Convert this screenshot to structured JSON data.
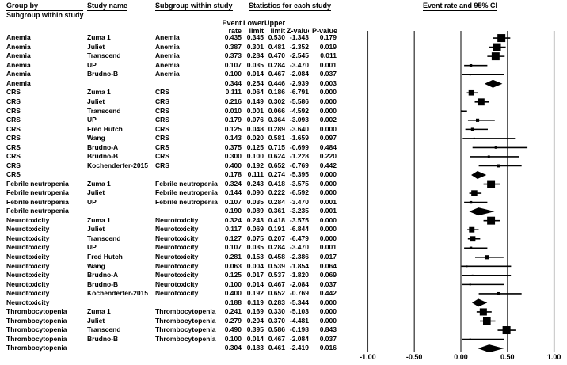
{
  "header": {
    "group_by_line1": "Group by",
    "group_by_line2": "Subgroup within study",
    "study_name": "Study name",
    "subgroup": "Subgroup within study",
    "statistics": "Statistics for each study",
    "plot_title": "Event rate and 95% CI"
  },
  "stat_columns": {
    "event_line1": "Event",
    "event_line2": "rate",
    "lower_line1": "Lower",
    "lower_line2": "limit",
    "upper_line1": "Upper",
    "upper_line2": "limit",
    "z_label": "Z-value",
    "p_label": "P-value"
  },
  "axis": {
    "tick_labels": [
      "-1.00",
      "-0.50",
      "0.00",
      "0.50",
      "1.00"
    ],
    "tick_values": [
      -1,
      -0.5,
      0,
      0.5,
      1
    ]
  },
  "colors": {
    "marker": "#000000",
    "gridline": "#3d3d3d",
    "text": "#000000",
    "background": "#ffffff"
  },
  "chart_data": {
    "type": "forest",
    "title": "Event rate and 95% CI",
    "effect_measure": "Event rate",
    "xlim": [
      -1,
      1
    ],
    "x_ticks": [
      -1,
      -0.5,
      0,
      0.5,
      1
    ],
    "rows": [
      {
        "group": "Anemia",
        "study": "Zuma 1",
        "subgroup": "Anemia",
        "rate": 0.435,
        "lower": 0.345,
        "upper": 0.53,
        "z": -1.343,
        "p": 0.179,
        "summary": false
      },
      {
        "group": "Anemia",
        "study": "Juliet",
        "subgroup": "Anemia",
        "rate": 0.387,
        "lower": 0.301,
        "upper": 0.481,
        "z": -2.352,
        "p": 0.019,
        "summary": false
      },
      {
        "group": "Anemia",
        "study": "Transcend",
        "subgroup": "Anemia",
        "rate": 0.373,
        "lower": 0.284,
        "upper": 0.47,
        "z": -2.545,
        "p": 0.011,
        "summary": false
      },
      {
        "group": "Anemia",
        "study": "UP",
        "subgroup": "Anemia",
        "rate": 0.107,
        "lower": 0.035,
        "upper": 0.284,
        "z": -3.47,
        "p": 0.001,
        "summary": false
      },
      {
        "group": "Anemia",
        "study": "Brudno-B",
        "subgroup": "Anemia",
        "rate": 0.1,
        "lower": 0.014,
        "upper": 0.467,
        "z": -2.084,
        "p": 0.037,
        "summary": false
      },
      {
        "group": "Anemia",
        "study": "",
        "subgroup": "",
        "rate": 0.344,
        "lower": 0.254,
        "upper": 0.446,
        "z": -2.939,
        "p": 0.003,
        "summary": true
      },
      {
        "group": "CRS",
        "study": "Zuma 1",
        "subgroup": "CRS",
        "rate": 0.111,
        "lower": 0.064,
        "upper": 0.186,
        "z": -6.791,
        "p": 0.0,
        "summary": false
      },
      {
        "group": "CRS",
        "study": "Juliet",
        "subgroup": "CRS",
        "rate": 0.216,
        "lower": 0.149,
        "upper": 0.302,
        "z": -5.586,
        "p": 0.0,
        "summary": false
      },
      {
        "group": "CRS",
        "study": "Transcend",
        "subgroup": "CRS",
        "rate": 0.01,
        "lower": 0.001,
        "upper": 0.066,
        "z": -4.592,
        "p": 0.0,
        "summary": false
      },
      {
        "group": "CRS",
        "study": "UP",
        "subgroup": "CRS",
        "rate": 0.179,
        "lower": 0.076,
        "upper": 0.364,
        "z": -3.093,
        "p": 0.002,
        "summary": false
      },
      {
        "group": "CRS",
        "study": "Fred Hutch",
        "subgroup": "CRS",
        "rate": 0.125,
        "lower": 0.048,
        "upper": 0.289,
        "z": -3.64,
        "p": 0.0,
        "summary": false
      },
      {
        "group": "CRS",
        "study": "Wang",
        "subgroup": "CRS",
        "rate": 0.143,
        "lower": 0.02,
        "upper": 0.581,
        "z": -1.659,
        "p": 0.097,
        "summary": false
      },
      {
        "group": "CRS",
        "study": "Brudno-A",
        "subgroup": "CRS",
        "rate": 0.375,
        "lower": 0.125,
        "upper": 0.715,
        "z": -0.699,
        "p": 0.484,
        "summary": false
      },
      {
        "group": "CRS",
        "study": "Brudno-B",
        "subgroup": "CRS",
        "rate": 0.3,
        "lower": 0.1,
        "upper": 0.624,
        "z": -1.228,
        "p": 0.22,
        "summary": false
      },
      {
        "group": "CRS",
        "study": "Kochenderfer-2015",
        "subgroup": "CRS",
        "rate": 0.4,
        "lower": 0.192,
        "upper": 0.652,
        "z": -0.769,
        "p": 0.442,
        "summary": false
      },
      {
        "group": "CRS",
        "study": "",
        "subgroup": "",
        "rate": 0.178,
        "lower": 0.111,
        "upper": 0.274,
        "z": -5.395,
        "p": 0.0,
        "summary": true
      },
      {
        "group": "Febrile neutropenia",
        "study": "Zuma 1",
        "subgroup": "Febrile neutropenia",
        "rate": 0.324,
        "lower": 0.243,
        "upper": 0.418,
        "z": -3.575,
        "p": 0.0,
        "summary": false
      },
      {
        "group": "Febrile neutropenia",
        "study": "Juliet",
        "subgroup": "Febrile neutropenia",
        "rate": 0.144,
        "lower": 0.09,
        "upper": 0.222,
        "z": -6.592,
        "p": 0.0,
        "summary": false
      },
      {
        "group": "Febrile neutropenia",
        "study": "UP",
        "subgroup": "Febrile neutropenia",
        "rate": 0.107,
        "lower": 0.035,
        "upper": 0.284,
        "z": -3.47,
        "p": 0.001,
        "summary": false
      },
      {
        "group": "Febrile neutropenia",
        "study": "",
        "subgroup": "",
        "rate": 0.19,
        "lower": 0.089,
        "upper": 0.361,
        "z": -3.235,
        "p": 0.001,
        "summary": true
      },
      {
        "group": "Neurotoxicity",
        "study": "Zuma 1",
        "subgroup": "Neurotoxicity",
        "rate": 0.324,
        "lower": 0.243,
        "upper": 0.418,
        "z": -3.575,
        "p": 0.0,
        "summary": false
      },
      {
        "group": "Neurotoxicity",
        "study": "Juliet",
        "subgroup": "Neurotoxicity",
        "rate": 0.117,
        "lower": 0.069,
        "upper": 0.191,
        "z": -6.844,
        "p": 0.0,
        "summary": false
      },
      {
        "group": "Neurotoxicity",
        "study": "Transcend",
        "subgroup": "Neurotoxicity",
        "rate": 0.127,
        "lower": 0.075,
        "upper": 0.207,
        "z": -6.479,
        "p": 0.0,
        "summary": false
      },
      {
        "group": "Neurotoxicity",
        "study": "UP",
        "subgroup": "Neurotoxicity",
        "rate": 0.107,
        "lower": 0.035,
        "upper": 0.284,
        "z": -3.47,
        "p": 0.001,
        "summary": false
      },
      {
        "group": "Neurotoxicity",
        "study": "Fred Hutch",
        "subgroup": "Neurotoxicity",
        "rate": 0.281,
        "lower": 0.153,
        "upper": 0.458,
        "z": -2.386,
        "p": 0.017,
        "summary": false
      },
      {
        "group": "Neurotoxicity",
        "study": "Wang",
        "subgroup": "Neurotoxicity",
        "rate": 0.063,
        "lower": 0.004,
        "upper": 0.539,
        "z": -1.854,
        "p": 0.064,
        "summary": false
      },
      {
        "group": "Neurotoxicity",
        "study": "Brudno-A",
        "subgroup": "Neurotoxicity",
        "rate": 0.125,
        "lower": 0.017,
        "upper": 0.537,
        "z": -1.82,
        "p": 0.069,
        "summary": false
      },
      {
        "group": "Neurotoxicity",
        "study": "Brudno-B",
        "subgroup": "Neurotoxicity",
        "rate": 0.1,
        "lower": 0.014,
        "upper": 0.467,
        "z": -2.084,
        "p": 0.037,
        "summary": false
      },
      {
        "group": "Neurotoxicity",
        "study": "Kochenderfer-2015",
        "subgroup": "Neurotoxicity",
        "rate": 0.4,
        "lower": 0.192,
        "upper": 0.652,
        "z": -0.769,
        "p": 0.442,
        "summary": false
      },
      {
        "group": "Neurotoxicity",
        "study": "",
        "subgroup": "",
        "rate": 0.188,
        "lower": 0.119,
        "upper": 0.283,
        "z": -5.344,
        "p": 0.0,
        "summary": true
      },
      {
        "group": "Thrombocytopenia",
        "study": "Zuma 1",
        "subgroup": "Thrombocytopenia",
        "rate": 0.241,
        "lower": 0.169,
        "upper": 0.33,
        "z": -5.103,
        "p": 0.0,
        "summary": false
      },
      {
        "group": "Thrombocytopenia",
        "study": "Juliet",
        "subgroup": "Thrombocytopenia",
        "rate": 0.279,
        "lower": 0.204,
        "upper": 0.37,
        "z": -4.481,
        "p": 0.0,
        "summary": false
      },
      {
        "group": "Thrombocytopenia",
        "study": "Transcend",
        "subgroup": "Thrombocytopenia",
        "rate": 0.49,
        "lower": 0.395,
        "upper": 0.586,
        "z": -0.198,
        "p": 0.843,
        "summary": false
      },
      {
        "group": "Thrombocytopenia",
        "study": "Brudno-B",
        "subgroup": "Thrombocytopenia",
        "rate": 0.1,
        "lower": 0.014,
        "upper": 0.467,
        "z": -2.084,
        "p": 0.037,
        "summary": false
      },
      {
        "group": "Thrombocytopenia",
        "study": "",
        "subgroup": "",
        "rate": 0.304,
        "lower": 0.183,
        "upper": 0.461,
        "z": -2.419,
        "p": 0.016,
        "summary": true
      }
    ]
  }
}
